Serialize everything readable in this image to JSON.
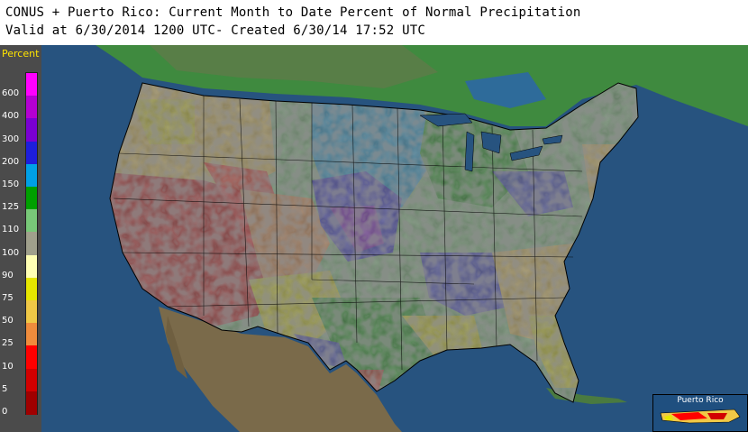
{
  "header": {
    "title": "CONUS + Puerto Rico: Current Month to Date Percent of Normal Precipitation",
    "subtitle": "Valid at 6/30/2014 1200 UTC- Created 6/30/14 17:52 UTC"
  },
  "legend": {
    "title": "Percent",
    "items": [
      {
        "label": "600",
        "color": "#ff00ff"
      },
      {
        "label": "400",
        "color": "#b400d2"
      },
      {
        "label": "300",
        "color": "#7a00d2"
      },
      {
        "label": "200",
        "color": "#1e1edc"
      },
      {
        "label": "150",
        "color": "#00a0e6"
      },
      {
        "label": "125",
        "color": "#00a000"
      },
      {
        "label": "110",
        "color": "#78c878"
      },
      {
        "label": "100",
        "color": "#a0a08c"
      },
      {
        "label": "90",
        "color": "#ffffb4"
      },
      {
        "label": "75",
        "color": "#e6e600"
      },
      {
        "label": "50",
        "color": "#f0c846"
      },
      {
        "label": "25",
        "color": "#f08c3c"
      },
      {
        "label": "10",
        "color": "#ff0000"
      },
      {
        "label": "5",
        "color": "#d20000"
      },
      {
        "label": "0",
        "color": "#a00000"
      }
    ]
  },
  "map": {
    "ocean_color": "#27537f",
    "land_color": "#6f7d4f",
    "canada_color": "#3f8a3f"
  },
  "inset": {
    "label": "Puerto Rico"
  }
}
